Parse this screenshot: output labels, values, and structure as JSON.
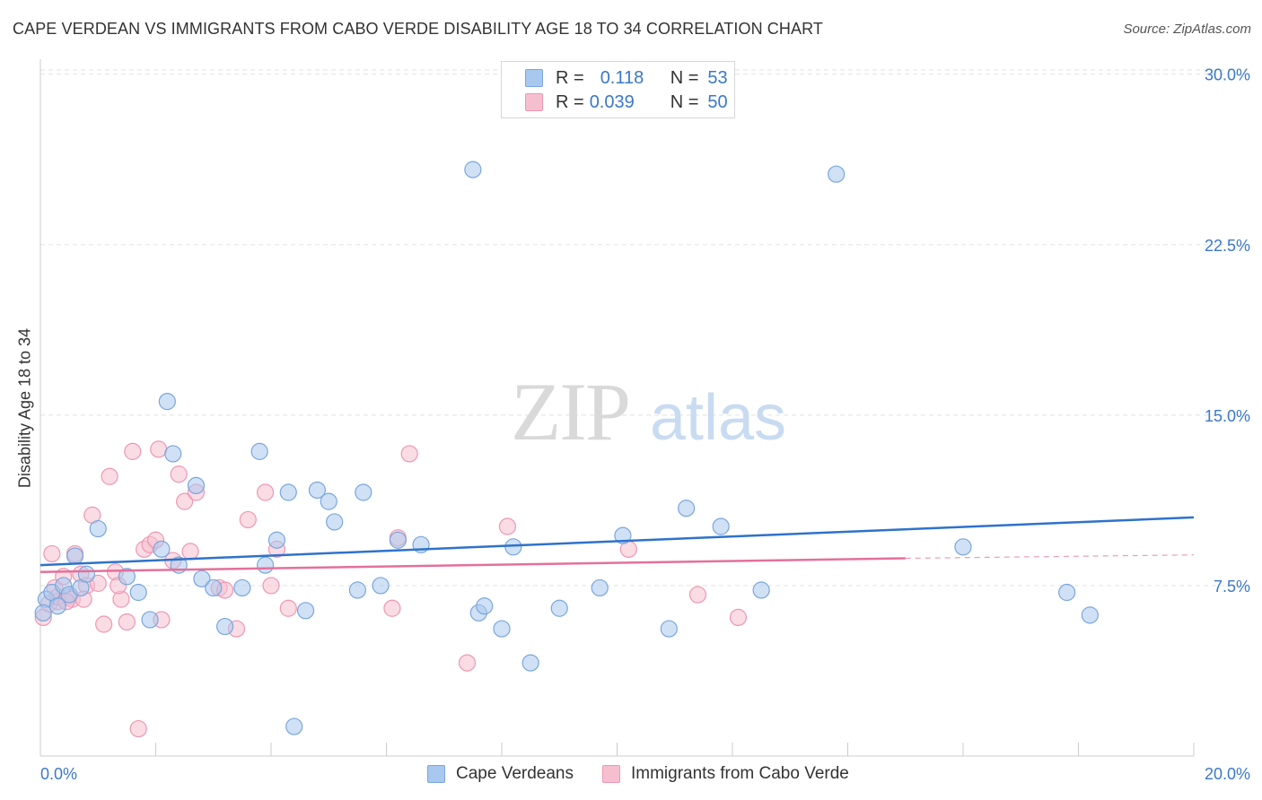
{
  "title": "CAPE VERDEAN VS IMMIGRANTS FROM CABO VERDE DISABILITY AGE 18 TO 34 CORRELATION CHART",
  "source": "Source: ZipAtlas.com",
  "watermark": {
    "zip": "ZIP",
    "atlas": "atlas"
  },
  "legend": {
    "r_label": "R =",
    "n_label": "N =",
    "rows": [
      {
        "r": "0.118",
        "n": "53"
      },
      {
        "r": "0.039",
        "n": "50"
      }
    ]
  },
  "colors": {
    "blue_fill": "#a9c8ef",
    "blue_stroke": "#7aa6dc",
    "blue_line": "#2f72cc",
    "pink_fill": "#f6bfd0",
    "pink_stroke": "#ee97b3",
    "pink_line": "#e4709a",
    "tick_text": "#3a78c9"
  },
  "chart_data": {
    "type": "scatter",
    "title": "CAPE VERDEAN VS IMMIGRANTS FROM CABO VERDE DISABILITY AGE 18 TO 34 CORRELATION CHART",
    "xlabel": "",
    "ylabel": "Disability Age 18 to 34",
    "xlim": [
      0,
      20
    ],
    "ylim": [
      0,
      30.5
    ],
    "x_tick_labels": [
      "0.0%",
      "20.0%"
    ],
    "y_ticks": [
      7.5,
      15.0,
      22.5,
      30.0
    ],
    "y_tick_labels": [
      "7.5%",
      "15.0%",
      "22.5%",
      "30.0%"
    ],
    "grid": "horizontal dashed",
    "legend_position": "top-center",
    "series": [
      {
        "name": "Cape Verdeans",
        "color": "#a9c8ef",
        "trend": {
          "x": [
            0,
            20
          ],
          "y": [
            8.4,
            10.5
          ]
        },
        "points": [
          [
            0.1,
            6.9
          ],
          [
            0.2,
            7.2
          ],
          [
            0.3,
            6.6
          ],
          [
            0.4,
            7.5
          ],
          [
            0.5,
            7.1
          ],
          [
            0.6,
            8.8
          ],
          [
            0.7,
            7.4
          ],
          [
            0.8,
            8.0
          ],
          [
            1.0,
            10.0
          ],
          [
            1.5,
            7.9
          ],
          [
            1.7,
            7.2
          ],
          [
            1.9,
            6.0
          ],
          [
            2.1,
            9.1
          ],
          [
            2.2,
            15.6
          ],
          [
            2.3,
            13.3
          ],
          [
            2.4,
            8.4
          ],
          [
            2.7,
            11.9
          ],
          [
            2.8,
            7.8
          ],
          [
            3.0,
            7.4
          ],
          [
            3.2,
            5.7
          ],
          [
            3.5,
            7.4
          ],
          [
            3.8,
            13.4
          ],
          [
            3.9,
            8.4
          ],
          [
            4.1,
            9.5
          ],
          [
            4.3,
            11.6
          ],
          [
            4.4,
            1.3
          ],
          [
            4.6,
            6.4
          ],
          [
            4.8,
            11.7
          ],
          [
            5.0,
            11.2
          ],
          [
            5.1,
            10.3
          ],
          [
            5.5,
            7.3
          ],
          [
            5.6,
            11.6
          ],
          [
            5.9,
            7.5
          ],
          [
            6.2,
            9.5
          ],
          [
            6.6,
            9.3
          ],
          [
            7.5,
            25.8
          ],
          [
            7.6,
            6.3
          ],
          [
            7.7,
            6.6
          ],
          [
            8.0,
            5.6
          ],
          [
            8.2,
            9.2
          ],
          [
            8.5,
            4.1
          ],
          [
            9.0,
            6.5
          ],
          [
            9.7,
            7.4
          ],
          [
            10.1,
            9.7
          ],
          [
            10.9,
            5.6
          ],
          [
            11.2,
            10.9
          ],
          [
            11.8,
            10.1
          ],
          [
            12.5,
            7.3
          ],
          [
            13.8,
            25.6
          ],
          [
            16.0,
            9.2
          ],
          [
            17.8,
            7.2
          ],
          [
            18.2,
            6.2
          ],
          [
            0.05,
            6.3
          ]
        ]
      },
      {
        "name": "Immigrants from Cabo Verde",
        "color": "#f6bfd0",
        "trend": {
          "x": [
            0,
            15
          ],
          "y": [
            8.1,
            8.7
          ]
        },
        "trend_dashed_to": {
          "x": 20,
          "y": 8.85
        },
        "points": [
          [
            0.05,
            6.1
          ],
          [
            0.15,
            6.7
          ],
          [
            0.25,
            7.4
          ],
          [
            0.3,
            6.8
          ],
          [
            0.4,
            7.9
          ],
          [
            0.5,
            7.0
          ],
          [
            0.55,
            6.9
          ],
          [
            0.6,
            8.9
          ],
          [
            0.7,
            8.0
          ],
          [
            0.8,
            7.5
          ],
          [
            0.9,
            10.6
          ],
          [
            1.0,
            7.6
          ],
          [
            1.1,
            5.8
          ],
          [
            1.2,
            12.3
          ],
          [
            1.3,
            8.1
          ],
          [
            1.4,
            6.9
          ],
          [
            1.5,
            5.9
          ],
          [
            1.6,
            13.4
          ],
          [
            1.7,
            1.2
          ],
          [
            1.8,
            9.1
          ],
          [
            1.9,
            9.3
          ],
          [
            2.0,
            9.5
          ],
          [
            2.05,
            13.5
          ],
          [
            2.1,
            6.0
          ],
          [
            2.3,
            8.6
          ],
          [
            2.4,
            12.4
          ],
          [
            2.5,
            11.2
          ],
          [
            2.7,
            11.6
          ],
          [
            3.1,
            7.4
          ],
          [
            3.2,
            7.3
          ],
          [
            3.4,
            5.6
          ],
          [
            3.6,
            10.4
          ],
          [
            3.9,
            11.6
          ],
          [
            4.0,
            7.5
          ],
          [
            4.1,
            9.1
          ],
          [
            4.3,
            6.5
          ],
          [
            6.1,
            6.5
          ],
          [
            6.2,
            9.6
          ],
          [
            6.4,
            13.3
          ],
          [
            7.4,
            4.1
          ],
          [
            8.1,
            10.1
          ],
          [
            10.2,
            9.1
          ],
          [
            11.4,
            7.1
          ],
          [
            12.1,
            6.1
          ],
          [
            0.3,
            7.0
          ],
          [
            0.45,
            6.8
          ],
          [
            0.75,
            6.9
          ],
          [
            1.35,
            7.5
          ],
          [
            2.6,
            9.0
          ],
          [
            0.2,
            8.9
          ]
        ]
      }
    ]
  }
}
